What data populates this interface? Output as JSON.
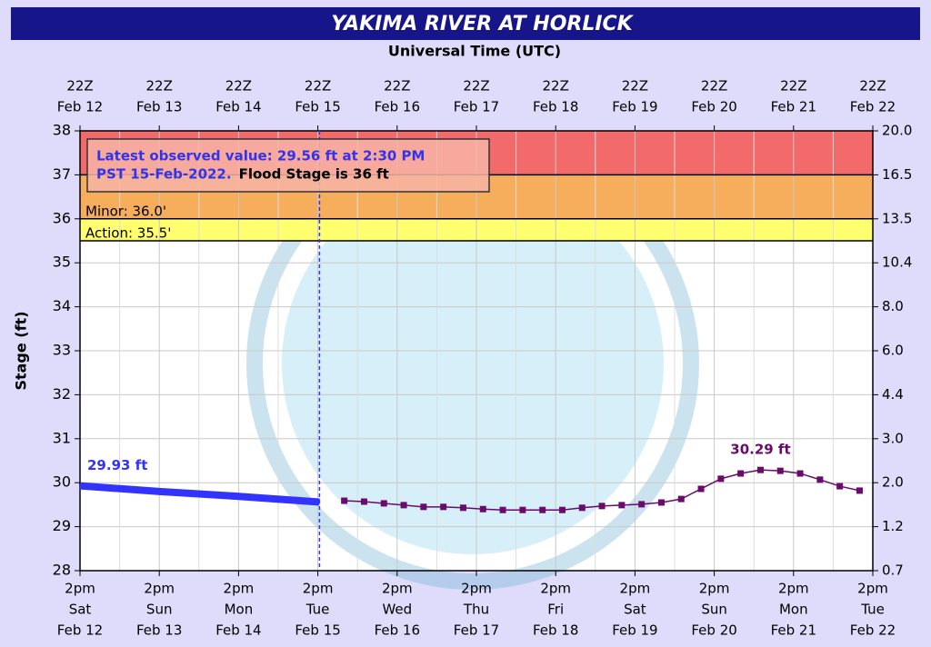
{
  "chart_data": {
    "type": "hydrograph",
    "title": "YAKIMA RIVER AT HORLICK",
    "top_axis_title": "Universal Time (UTC)",
    "ylabel": "Stage (ft)",
    "xlim": [
      "2022-02-12T14:00",
      "2022-02-22T14:00"
    ],
    "xticks": [
      "2022-02-12T14:00",
      "2022-02-13T14:00",
      "2022-02-14T14:00",
      "2022-02-15T14:00",
      "2022-02-16T14:00",
      "2022-02-17T14:00",
      "2022-02-18T14:00",
      "2022-02-19T14:00",
      "2022-02-20T14:00",
      "2022-02-21T14:00",
      "2022-02-22T14:00"
    ],
    "xtick_time": [
      "2pm",
      "2pm",
      "2pm",
      "2pm",
      "2pm",
      "2pm",
      "2pm",
      "2pm",
      "2pm",
      "2pm",
      "2pm"
    ],
    "xtick_day": [
      "Sat",
      "Sun",
      "Mon",
      "Tue",
      "Wed",
      "Thu",
      "Fri",
      "Sat",
      "Sun",
      "Mon",
      "Tue"
    ],
    "xtick_date": [
      "Feb 12",
      "Feb 13",
      "Feb 14",
      "Feb 15",
      "Feb 16",
      "Feb 17",
      "Feb 18",
      "Feb 19",
      "Feb 20",
      "Feb 21",
      "Feb 22"
    ],
    "x2tick_time": [
      "22Z",
      "22Z",
      "22Z",
      "22Z",
      "22Z",
      "22Z",
      "22Z",
      "22Z",
      "22Z",
      "22Z",
      "22Z"
    ],
    "x2tick_date": [
      "Feb 12",
      "Feb 13",
      "Feb 14",
      "Feb 15",
      "Feb 16",
      "Feb 17",
      "Feb 18",
      "Feb 19",
      "Feb 20",
      "Feb 21",
      "Feb 22"
    ],
    "ylim": [
      28,
      38
    ],
    "yticks": [
      28,
      29,
      30,
      31,
      32,
      33,
      34,
      35,
      36,
      37,
      38
    ],
    "y2ticks": [
      {
        "value": 0.7,
        "label": "0.7"
      },
      {
        "value": 1.2,
        "label": "1.2"
      },
      {
        "value": 2,
        "label": "2.0"
      },
      {
        "value": 3,
        "label": "3.0"
      },
      {
        "value": 4.4,
        "label": "4.4"
      },
      {
        "value": 6,
        "label": "6.0"
      },
      {
        "value": 8,
        "label": "8.0"
      },
      {
        "value": 10.4,
        "label": "10.4"
      },
      {
        "value": 13.5,
        "label": "13.5"
      },
      {
        "value": 16.5,
        "label": "16.5"
      },
      {
        "value": 20,
        "label": "20.0"
      }
    ],
    "grid": true,
    "bands": [
      {
        "from": 37,
        "to": 38,
        "color": "#f26a6a"
      },
      {
        "from": 36,
        "to": 37,
        "color": "#f6ad5c"
      },
      {
        "from": 35.5,
        "to": 36,
        "color": "#ffff70"
      }
    ],
    "thresholds": [
      {
        "value": 36,
        "label": "Minor: 36.0'"
      },
      {
        "value": 35.5,
        "label": "Action: 35.5'"
      }
    ],
    "annotation": {
      "line1": "Latest observed value: 29.56 ft at 2:30 PM",
      "line2": "PST 15-Feb-2022.",
      "line3": "Flood Stage is 36 ft"
    },
    "series": [
      {
        "kind": "observed",
        "color": "#3333ff",
        "x": [
          "2022-02-12T14:00",
          "2022-02-13T14:00",
          "2022-02-14T14:00",
          "2022-02-15T14:30"
        ],
        "values": [
          29.93,
          29.8,
          29.69,
          29.56
        ],
        "value_labels": [
          "29.93 ft",
          null,
          null,
          null
        ]
      },
      {
        "kind": "forecast",
        "color": "#6a0a6a",
        "x": [
          "2022-02-15T22:00",
          "2022-02-16T04:00",
          "2022-02-16T10:00",
          "2022-02-16T16:00",
          "2022-02-16T22:00",
          "2022-02-17T04:00",
          "2022-02-17T10:00",
          "2022-02-17T16:00",
          "2022-02-17T22:00",
          "2022-02-18T04:00",
          "2022-02-18T10:00",
          "2022-02-18T16:00",
          "2022-02-18T22:00",
          "2022-02-19T04:00",
          "2022-02-19T10:00",
          "2022-02-19T16:00",
          "2022-02-19T22:00",
          "2022-02-20T04:00",
          "2022-02-20T10:00",
          "2022-02-20T16:00",
          "2022-02-20T22:00",
          "2022-02-21T04:00",
          "2022-02-21T10:00",
          "2022-02-21T16:00",
          "2022-02-21T22:00",
          "2022-02-22T04:00",
          "2022-02-22T10:00"
        ],
        "values": [
          29.59,
          29.57,
          29.53,
          29.49,
          29.45,
          29.45,
          29.43,
          29.4,
          29.38,
          29.38,
          29.38,
          29.38,
          29.43,
          29.47,
          29.49,
          29.51,
          29.55,
          29.63,
          29.86,
          30.09,
          30.21,
          30.29,
          30.27,
          30.21,
          30.07,
          29.92,
          29.82
        ],
        "value_labels": [
          null,
          null,
          null,
          null,
          null,
          null,
          null,
          null,
          null,
          null,
          null,
          null,
          null,
          null,
          null,
          null,
          null,
          null,
          null,
          null,
          null,
          "30.29 ft",
          null,
          null,
          null,
          null,
          null
        ]
      }
    ]
  }
}
